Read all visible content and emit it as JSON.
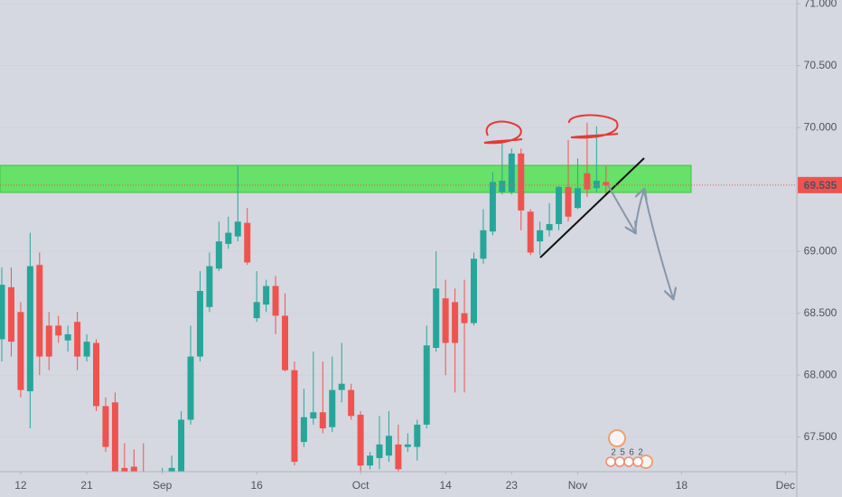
{
  "chart_data": {
    "type": "candlestick",
    "up_color": "#26a69a",
    "down_color": "#ef5350",
    "categories": [
      null,
      null,
      "12",
      null,
      null,
      null,
      null,
      null,
      null,
      "21",
      null,
      null,
      null,
      null,
      null,
      null,
      null,
      "Sep",
      null,
      null,
      null,
      null,
      null,
      null,
      null,
      null,
      null,
      "16",
      null,
      null,
      null,
      null,
      null,
      null,
      null,
      null,
      null,
      null,
      "Oct",
      null,
      null,
      null,
      null,
      null,
      null,
      null,
      null,
      "14",
      null,
      null,
      null,
      null,
      null,
      null,
      "23",
      null,
      null,
      null,
      null,
      null,
      null,
      "Nov",
      null,
      null,
      null,
      null,
      null,
      null,
      null,
      null,
      null,
      null,
      "18",
      null,
      null,
      null,
      null,
      null,
      null,
      null,
      null,
      null,
      null,
      "Dec"
    ],
    "open": [
      68.29,
      68.71,
      68.51,
      67.87,
      68.89,
      68.4,
      68.4,
      68.28,
      68.43,
      68.15,
      68.26,
      67.75,
      67.78,
      67.25,
      67.26,
      67.2,
      67.05,
      67.1,
      67.15,
      67.17,
      67.64,
      68.15,
      68.55,
      68.86,
      69.06,
      69.12,
      69.23,
      68.46,
      68.57,
      68.72,
      68.48,
      68.04,
      67.46,
      67.65,
      67.7,
      67.58,
      67.88,
      67.88,
      67.68,
      67.27,
      67.33,
      67.35,
      67.44,
      67.42,
      67.42,
      67.6,
      68.22,
      68.62,
      68.59,
      68.5,
      68.42,
      68.94,
      69.16,
      69.48,
      69.48,
      69.79,
      69.32,
      69.08,
      69.17,
      69.22,
      69.52,
      69.35,
      69.63,
      69.51,
      69.56,
      null,
      null,
      null,
      null,
      null,
      null,
      null,
      null,
      null,
      null,
      null,
      null,
      null,
      null,
      null,
      null,
      null,
      null,
      null
    ],
    "high": [
      68.87,
      68.87,
      68.59,
      69.15,
      68.99,
      68.51,
      68.48,
      68.4,
      68.51,
      68.33,
      68.29,
      67.82,
      67.86,
      67.45,
      67.4,
      67.45,
      67.2,
      67.25,
      67.35,
      67.71,
      68.4,
      68.84,
      68.99,
      69.24,
      69.28,
      69.69,
      69.35,
      68.84,
      68.77,
      68.8,
      68.66,
      68.11,
      67.89,
      68.19,
      68.11,
      68.15,
      68.26,
      67.93,
      67.71,
      67.38,
      67.67,
      67.71,
      67.6,
      67.53,
      67.64,
      68.4,
      69.0,
      68.77,
      68.7,
      68.77,
      68.99,
      69.34,
      69.64,
      69.9,
      69.83,
      69.83,
      69.34,
      69.24,
      69.39,
      69.53,
      69.9,
      69.75,
      70.04,
      70.01,
      69.69,
      null,
      null,
      null,
      null,
      null,
      null,
      null,
      null,
      null,
      null,
      null,
      null,
      null,
      null,
      null,
      null,
      null,
      null,
      null
    ],
    "low": [
      68.11,
      68.15,
      67.82,
      67.57,
      68.0,
      68.04,
      68.26,
      68.19,
      68.04,
      68.11,
      67.71,
      67.38,
      67.0,
      67.0,
      67.05,
      66.98,
      66.95,
      67.0,
      67.08,
      67.1,
      67.6,
      68.11,
      68.51,
      68.84,
      69.02,
      69.08,
      68.89,
      68.43,
      68.51,
      68.33,
      68.03,
      67.27,
      67.42,
      67.6,
      67.53,
      67.54,
      67.78,
      67.64,
      67.2,
      67.24,
      67.24,
      67.3,
      67.2,
      67.38,
      67.31,
      67.57,
      68.19,
      68.0,
      67.86,
      67.86,
      68.4,
      68.9,
      69.13,
      69.46,
      69.46,
      69.17,
      68.97,
      68.97,
      69.12,
      69.17,
      69.24,
      69.34,
      69.44,
      69.48,
      69.46,
      null,
      null,
      null,
      null,
      null,
      null,
      null,
      null,
      null,
      null,
      null,
      null,
      null,
      null,
      null,
      null,
      null,
      null,
      null
    ],
    "close": [
      68.73,
      68.27,
      67.88,
      68.88,
      68.15,
      68.15,
      68.32,
      68.33,
      68.15,
      68.27,
      67.75,
      67.42,
      67.1,
      67.1,
      67.18,
      67.1,
      67.1,
      67.18,
      67.25,
      67.64,
      68.15,
      68.68,
      68.88,
      69.08,
      69.15,
      69.24,
      68.91,
      68.59,
      68.72,
      68.48,
      68.04,
      67.3,
      67.66,
      67.7,
      67.57,
      67.88,
      67.93,
      67.67,
      67.27,
      67.35,
      67.44,
      67.51,
      67.24,
      67.44,
      67.6,
      68.24,
      68.7,
      68.26,
      68.26,
      68.42,
      68.94,
      69.17,
      69.56,
      69.57,
      69.79,
      69.33,
      68.99,
      69.17,
      69.22,
      69.52,
      69.28,
      69.51,
      69.5,
      69.57,
      69.535,
      null,
      null,
      null,
      null,
      null,
      null,
      null,
      null,
      null,
      null,
      null,
      null,
      null,
      null,
      null,
      null,
      null,
      null,
      null
    ],
    "ylim": [
      67.22,
      71.03
    ],
    "yticks": [
      {
        "value": 71,
        "label": "71.000"
      },
      {
        "value": 70.5,
        "label": "70.500"
      },
      {
        "value": 70,
        "label": "70.000"
      },
      {
        "value": 69,
        "label": "69.000"
      },
      {
        "value": 68.5,
        "label": "68.500"
      },
      {
        "value": 68,
        "label": "68.000"
      },
      {
        "value": 67.5,
        "label": "67.500"
      }
    ],
    "annotations": [
      "2",
      "5",
      "6",
      "2"
    ]
  }
}
